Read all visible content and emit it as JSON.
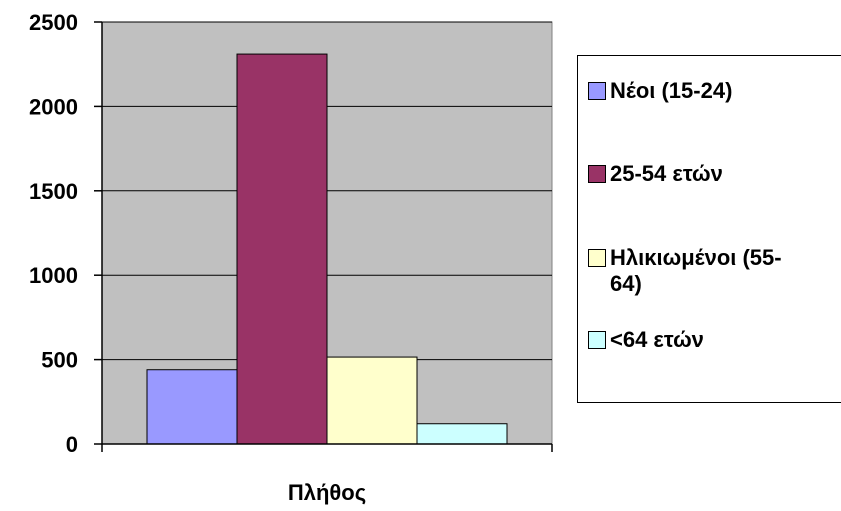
{
  "chart_data": {
    "type": "bar",
    "categories": [
      "Πλήθος"
    ],
    "series": [
      {
        "name": "Νέοι (15-24)",
        "values": [
          440
        ],
        "color": "#9999ff"
      },
      {
        "name": "25-54 ετών",
        "values": [
          2310
        ],
        "color": "#993366"
      },
      {
        "name": "Ηλικιωμένοι (55-64)",
        "values": [
          515
        ],
        "color": "#ffffcc"
      },
      {
        "name": "<64 ετών",
        "values": [
          120
        ],
        "color": "#ccffff"
      }
    ],
    "ylim": [
      0,
      2500
    ],
    "yticks": [
      0,
      500,
      1000,
      1500,
      2000,
      2500
    ],
    "ytick_labels": [
      "0",
      "500",
      "1000",
      "1500",
      "2000",
      "2500"
    ],
    "grid": true,
    "plot_background": "#c0c0c0",
    "legend_position": "right",
    "legend_lines": [
      [
        "Νέοι (15-24)"
      ],
      [
        "25-54 ετών"
      ],
      [
        "Ηλικιωμένοι (55-",
        "64)"
      ],
      [
        "<64 ετών"
      ]
    ]
  }
}
